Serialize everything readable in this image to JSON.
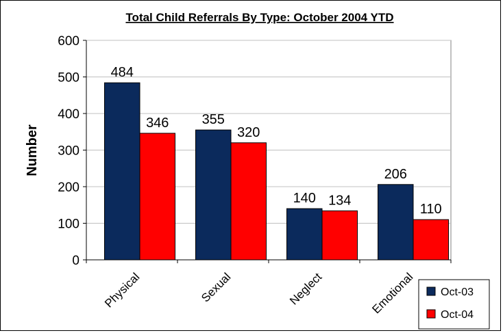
{
  "chart_data": {
    "type": "bar",
    "title": "Total Child Referrals By Type: October 2004 YTD",
    "xlabel": "",
    "ylabel": "Number",
    "categories": [
      "Physical",
      "Sexual",
      "Neglect",
      "Emotional"
    ],
    "series": [
      {
        "name": "Oct-03",
        "values": [
          484,
          355,
          140,
          206
        ],
        "color": "#0b2a5c"
      },
      {
        "name": "Oct-04",
        "values": [
          346,
          320,
          134,
          110
        ],
        "color": "#ff0000"
      }
    ],
    "ylim": [
      0,
      600
    ],
    "yticks": [
      "0",
      "100",
      "200",
      "300",
      "400",
      "500",
      "600"
    ],
    "grid": true,
    "legend_position": "bottom-right",
    "plot_background": "#ffffff",
    "gridline_color": "#c0c0c0"
  }
}
